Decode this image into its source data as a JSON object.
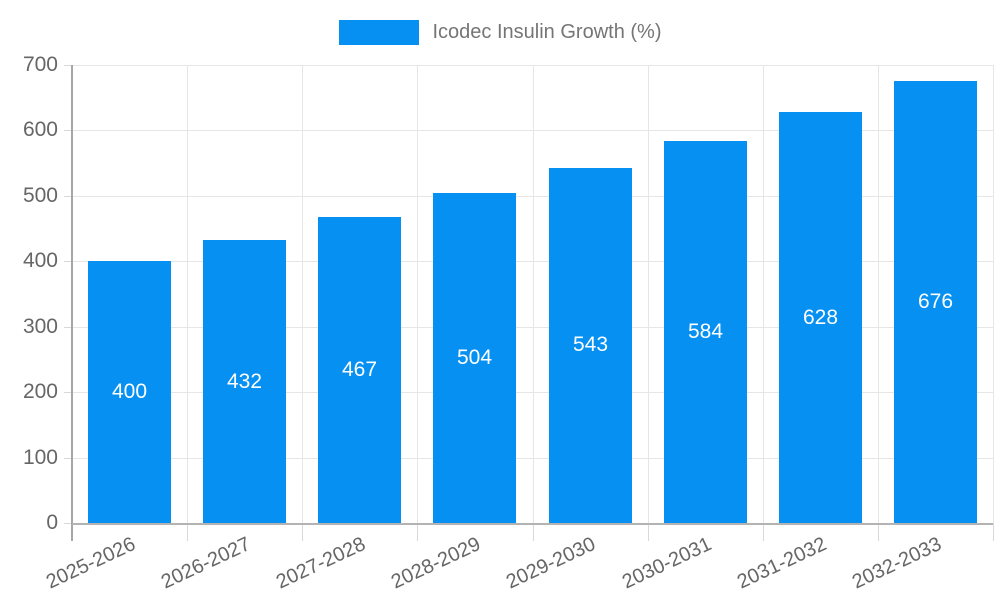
{
  "colors": {
    "bar": "#0590f2",
    "grid": "#e6e6e6",
    "axis": "#a6a6a6",
    "tick": "#d9d9d9",
    "tick_text": "#666666",
    "legend_text": "#757575",
    "bar_label_text": "#ffffff"
  },
  "legend": {
    "label": "Icodec Insulin Growth (%)"
  },
  "chart_data": {
    "type": "bar",
    "title": "Icodec Insulin Growth (%)",
    "categories": [
      "2025-2026",
      "2026-2027",
      "2027-2028",
      "2028-2029",
      "2029-2030",
      "2030-2031",
      "2031-2032",
      "2032-2033"
    ],
    "series": [
      {
        "name": "Icodec Insulin Growth (%)",
        "values": [
          400,
          432,
          467,
          504,
          543,
          584,
          628,
          676
        ]
      }
    ],
    "value_labels": [
      "400",
      "432",
      "467",
      "504",
      "543",
      "584",
      "628",
      "676"
    ],
    "ytick_labels": [
      "0",
      "100",
      "200",
      "300",
      "400",
      "500",
      "600",
      "700"
    ],
    "xlabel": "",
    "ylabel": "",
    "ylim": [
      0,
      700
    ],
    "ytick_step": 100,
    "grid": true,
    "legend_position": "top-center",
    "bar_label_position": "center-inside",
    "xlabel_rotation_deg": -25
  }
}
